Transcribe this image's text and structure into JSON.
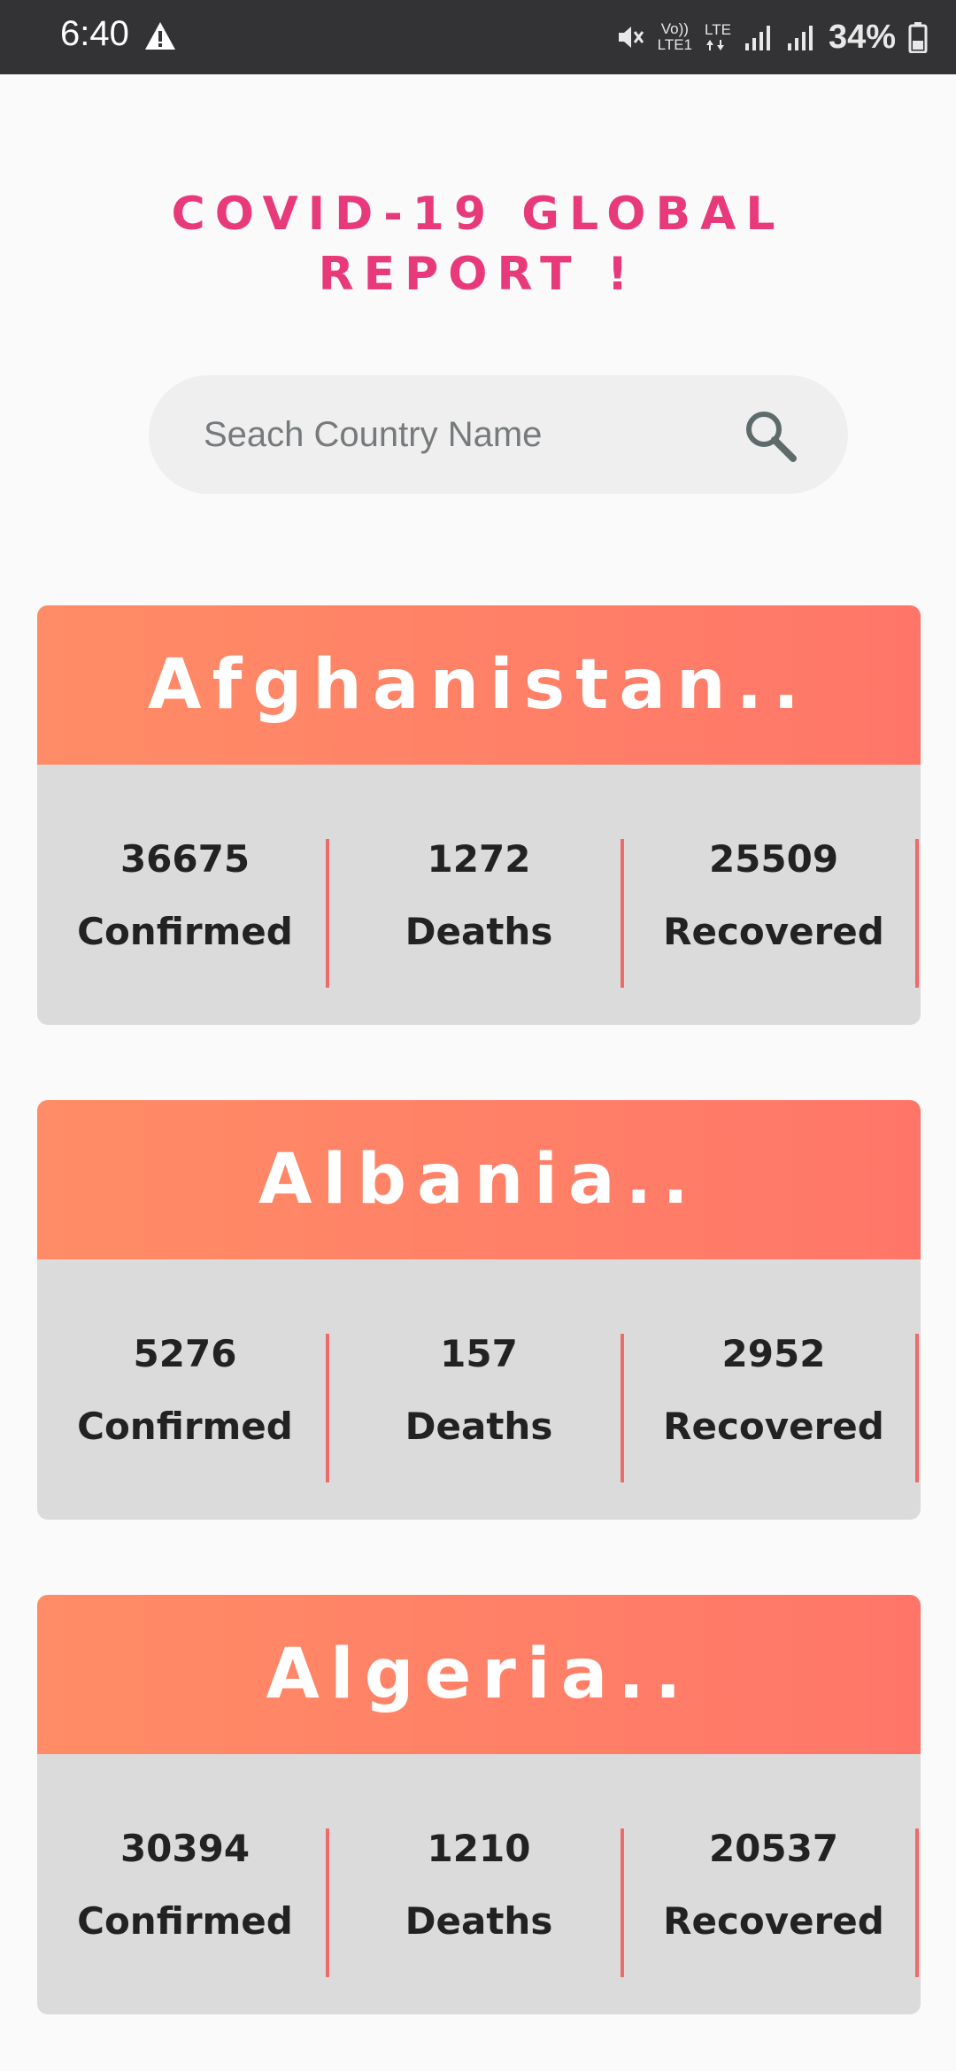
{
  "status_bar": {
    "time": "6:40",
    "network_top": "Vo))",
    "network_bottom": "LTE1",
    "lte_label": "LTE",
    "battery": "34%"
  },
  "title": {
    "line1": "COVID-19 GLOBAL",
    "line2": "REPORT !"
  },
  "search": {
    "placeholder": "Seach Country Name"
  },
  "colors": {
    "title": "#e83a7a",
    "header_gradient_start": "#ff8c66",
    "header_gradient_end": "#ff7668",
    "card_body": "#dcdbdb",
    "divider": "#ee6b6b"
  },
  "countries": [
    {
      "name": "Afghanistan..",
      "stats": [
        {
          "value": "36675",
          "label": "Confirmed"
        },
        {
          "value": "1272",
          "label": "Deaths"
        },
        {
          "value": "25509",
          "label": "Recovered"
        }
      ]
    },
    {
      "name": "Albania..",
      "stats": [
        {
          "value": "5276",
          "label": "Confirmed"
        },
        {
          "value": "157",
          "label": "Deaths"
        },
        {
          "value": "2952",
          "label": "Recovered"
        }
      ]
    },
    {
      "name": "Algeria..",
      "stats": [
        {
          "value": "30394",
          "label": "Confirmed"
        },
        {
          "value": "1210",
          "label": "Deaths"
        },
        {
          "value": "20537",
          "label": "Recovered"
        }
      ]
    }
  ]
}
